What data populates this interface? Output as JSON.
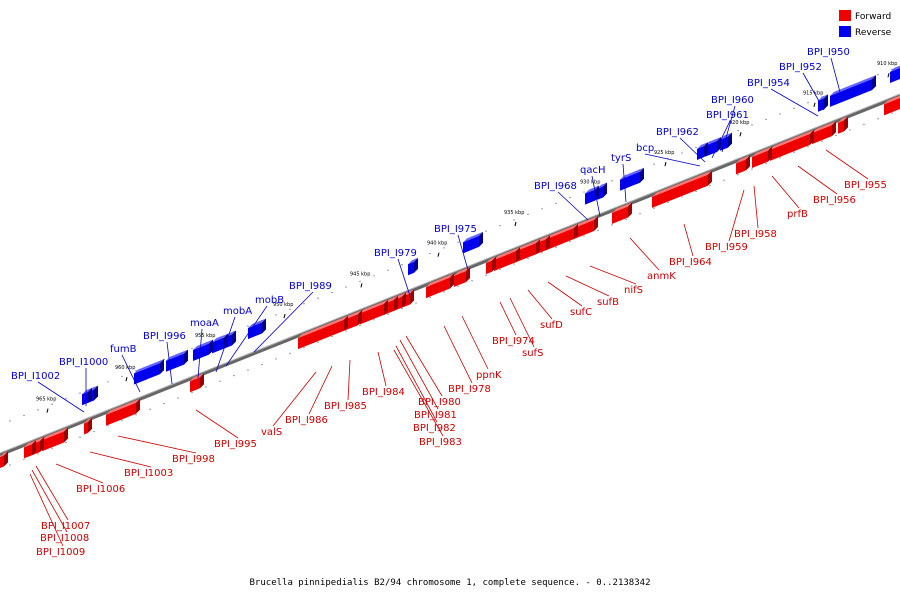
{
  "caption": "Brucella pinnipedialis B2/94 chromosome 1, complete sequence. - 0..2138342",
  "legend": [
    {
      "label": "Forward",
      "color": "#ee0000"
    },
    {
      "label": "Reverse",
      "color": "#0000ee"
    }
  ],
  "colors": {
    "forward": "#ee0000",
    "reverse": "#0000ee",
    "backbone": "#666666"
  },
  "ticks": [
    "910 kbp",
    "915 kbp",
    "920 kbp",
    "925 kbp",
    "930 kbp",
    "935 kbp",
    "940 kbp",
    "945 kbp",
    "950 kbp",
    "955 kbp",
    "960 kbp",
    "965 kbp"
  ],
  "forward_genes": [
    "BPI_I955",
    "BPI_I956",
    "prfB",
    "BPI_I958",
    "BPI_I959",
    "BPI_I964",
    "anmK",
    "nifS",
    "sufB",
    "sufC",
    "sufD",
    "sufS",
    "BPI_I974",
    "ppnK",
    "BPI_I978",
    "BPI_I980",
    "BPI_I981",
    "BPI_I982",
    "BPI_I983",
    "BPI_I984",
    "BPI_I985",
    "BPI_I986",
    "valS",
    "BPI_I995",
    "BPI_I998",
    "BPI_I1003",
    "BPI_I1006",
    "BPI_I1007",
    "BPI_I1008",
    "BPI_I1009"
  ],
  "reverse_genes": [
    "BPI_I950",
    "BPI_I952",
    "BPI_I954",
    "BPI_I960",
    "BPI_I961",
    "BPI_I962",
    "bcp",
    "tyrS",
    "qacH",
    "BPI_I968",
    "BPI_I975",
    "BPI_I979",
    "BPI_I989",
    "mobB",
    "mobA",
    "moaA",
    "BPI_I996",
    "fumB",
    "BPI_I1000",
    "BPI_I1002"
  ]
}
